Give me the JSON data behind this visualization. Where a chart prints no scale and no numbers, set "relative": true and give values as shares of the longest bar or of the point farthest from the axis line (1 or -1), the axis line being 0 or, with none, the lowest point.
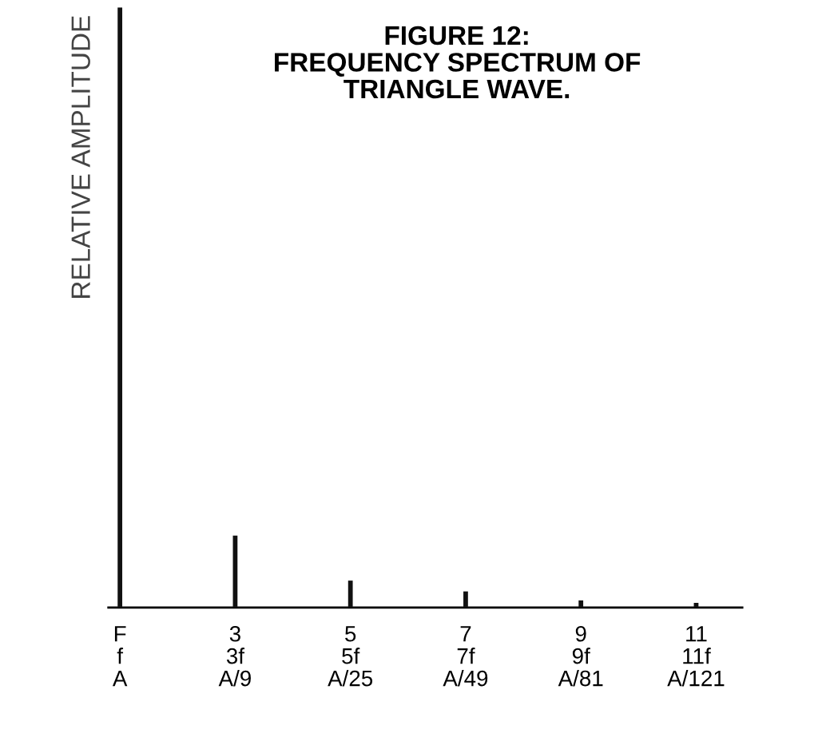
{
  "chart_data": {
    "type": "bar",
    "relative": true,
    "title": "FIGURE 12:\nFREQUENCY SPECTRUM OF\nTRIANGLE WAVE.",
    "ylabel": "RELATIVE AMPLITUDE",
    "categories": [
      "F\nf\nA",
      "3\n3f\nA/9",
      "5\n5f\nA/25",
      "7\n7f\nA/49",
      "9\n9f\nA/81",
      "11\n11f\nA/121"
    ],
    "values": [
      1,
      0.12,
      0.045,
      0.027,
      0.012,
      0.008
    ],
    "color": "#111111",
    "grid": false
  }
}
